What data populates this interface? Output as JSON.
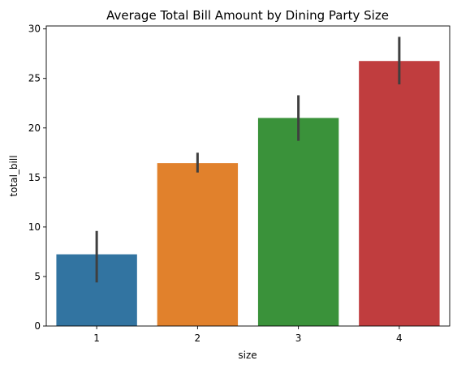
{
  "chart_data": {
    "type": "bar",
    "title": "Average Total Bill Amount by Dining Party Size",
    "xlabel": "size",
    "ylabel": "total_bill",
    "categories": [
      "1",
      "2",
      "3",
      "4"
    ],
    "values": [
      7.24,
      16.45,
      21.01,
      26.76
    ],
    "ci_low": [
      4.4,
      15.5,
      18.7,
      24.4
    ],
    "ci_high": [
      9.6,
      17.5,
      23.3,
      29.2
    ],
    "colors": [
      "#3274a1",
      "#e1812c",
      "#3a923a",
      "#c03d3e"
    ],
    "ylim": [
      0,
      30.3
    ],
    "yticks": [
      0,
      5,
      10,
      15,
      20,
      25,
      30
    ],
    "grid": false,
    "legend": "none"
  }
}
